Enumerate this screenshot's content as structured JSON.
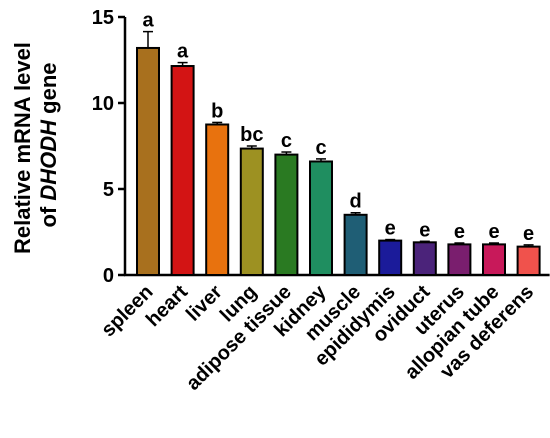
{
  "chart_data": {
    "type": "bar",
    "ylabel_line1": "Relative mRNA level",
    "ylabel_line2_prefix": "of ",
    "ylabel_line2_gene": "DHODH",
    "ylabel_line2_suffix": " gene",
    "ylim": [
      0,
      15
    ],
    "yticks": [
      0,
      5,
      10,
      15
    ],
    "grid": false,
    "categories": [
      "spleen",
      "heart",
      "liver",
      "lung",
      "adipose tissue",
      "kidney",
      "muscle",
      "epididymis",
      "oviduct",
      "uterus",
      "allopian tube",
      "vas deferens"
    ],
    "values": [
      13.2,
      12.15,
      8.75,
      7.35,
      7.0,
      6.6,
      3.5,
      2.0,
      1.9,
      1.78,
      1.78,
      1.65
    ],
    "errors": [
      0.95,
      0.2,
      0.12,
      0.15,
      0.15,
      0.15,
      0.12,
      0.06,
      0.06,
      0.08,
      0.08,
      0.1
    ],
    "labels": [
      "a",
      "a",
      "b",
      "bc",
      "c",
      "c",
      "d",
      "e",
      "e",
      "e",
      "e",
      "e"
    ],
    "colors": [
      "#A8701E",
      "#D31414",
      "#E8720E",
      "#9D9122",
      "#2A7A22",
      "#1F8E60",
      "#1F5E75",
      "#1B1B9A",
      "#4B237A",
      "#7A1E6E",
      "#C8195A",
      "#F0524C"
    ]
  }
}
